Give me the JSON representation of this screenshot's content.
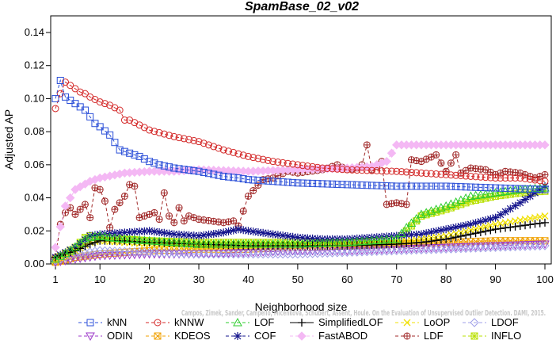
{
  "chart_data": {
    "type": "line",
    "title": "SpamBase_02_v02",
    "xlabel": "Neighborhood size",
    "ylabel": "Adjusted AP",
    "xlim": [
      1,
      100
    ],
    "ylim": [
      0,
      0.14
    ],
    "xticks": [
      1,
      10,
      20,
      30,
      40,
      50,
      60,
      70,
      80,
      90,
      100
    ],
    "yticks": [
      0.0,
      0.02,
      0.04,
      0.06,
      0.08,
      0.1,
      0.12,
      0.14
    ],
    "ytick_labels": [
      "0.00",
      "0.02",
      "0.04",
      "0.06",
      "0.08",
      "0.10",
      "0.12",
      "0.14"
    ],
    "legend_position": "bottom",
    "annotation": "Campos, Zimek, Sander, Campello, Micenkova, Schubert, Assent, Houle. On the Evaluation of Unsupervised Outlier Detection. DAMI, 2015.",
    "series": [
      {
        "name": "kNN",
        "color": "#2b4fd8",
        "marker": "square",
        "line": "dash",
        "points": [
          [
            1,
            0.1
          ],
          [
            2,
            0.111
          ],
          [
            3,
            0.101
          ],
          [
            4,
            0.099
          ],
          [
            5,
            0.097
          ],
          [
            6,
            0.095
          ],
          [
            7,
            0.093
          ],
          [
            8,
            0.089
          ],
          [
            9,
            0.085
          ],
          [
            10,
            0.083
          ],
          [
            12,
            0.078
          ],
          [
            14,
            0.069
          ],
          [
            16,
            0.067
          ],
          [
            18,
            0.065
          ],
          [
            20,
            0.062
          ],
          [
            22,
            0.06
          ],
          [
            25,
            0.058
          ],
          [
            30,
            0.056
          ],
          [
            35,
            0.053
          ],
          [
            38,
            0.052
          ],
          [
            40,
            0.051
          ],
          [
            45,
            0.05
          ],
          [
            50,
            0.049
          ],
          [
            60,
            0.048
          ],
          [
            70,
            0.047
          ],
          [
            80,
            0.047
          ],
          [
            90,
            0.046
          ],
          [
            100,
            0.045
          ]
        ]
      },
      {
        "name": "kNNW",
        "color": "#d42a2a",
        "marker": "circle",
        "line": "dash",
        "points": [
          [
            1,
            0.094
          ],
          [
            2,
            0.103
          ],
          [
            3,
            0.11
          ],
          [
            4,
            0.108
          ],
          [
            5,
            0.106
          ],
          [
            6,
            0.104
          ],
          [
            7,
            0.103
          ],
          [
            8,
            0.101
          ],
          [
            10,
            0.098
          ],
          [
            12,
            0.096
          ],
          [
            14,
            0.093
          ],
          [
            15,
            0.087
          ],
          [
            16,
            0.087
          ],
          [
            18,
            0.084
          ],
          [
            20,
            0.081
          ],
          [
            25,
            0.077
          ],
          [
            30,
            0.074
          ],
          [
            35,
            0.069
          ],
          [
            40,
            0.065
          ],
          [
            45,
            0.062
          ],
          [
            50,
            0.06
          ],
          [
            55,
            0.058
          ],
          [
            60,
            0.057
          ],
          [
            70,
            0.056
          ],
          [
            80,
            0.054
          ],
          [
            90,
            0.052
          ],
          [
            95,
            0.052
          ],
          [
            100,
            0.05
          ]
        ]
      },
      {
        "name": "LOF",
        "color": "#2ecc2e",
        "marker": "triangle-up",
        "line": "dash",
        "points": [
          [
            1,
            0.003
          ],
          [
            4,
            0.008
          ],
          [
            7,
            0.015
          ],
          [
            8,
            0.016
          ],
          [
            10,
            0.017
          ],
          [
            12,
            0.016
          ],
          [
            15,
            0.015
          ],
          [
            20,
            0.014
          ],
          [
            25,
            0.013
          ],
          [
            30,
            0.012
          ],
          [
            40,
            0.012
          ],
          [
            50,
            0.012
          ],
          [
            60,
            0.013
          ],
          [
            70,
            0.015
          ],
          [
            72,
            0.022
          ],
          [
            75,
            0.03
          ],
          [
            80,
            0.035
          ],
          [
            85,
            0.041
          ],
          [
            90,
            0.043
          ],
          [
            95,
            0.045
          ],
          [
            100,
            0.046
          ]
        ]
      },
      {
        "name": "SimplifiedLOF",
        "color": "#000000",
        "marker": "plus",
        "line": "solid",
        "points": [
          [
            1,
            0.004
          ],
          [
            5,
            0.008
          ],
          [
            8,
            0.012
          ],
          [
            10,
            0.014
          ],
          [
            15,
            0.014
          ],
          [
            20,
            0.013
          ],
          [
            30,
            0.012
          ],
          [
            40,
            0.011
          ],
          [
            50,
            0.011
          ],
          [
            60,
            0.011
          ],
          [
            70,
            0.012
          ],
          [
            75,
            0.013
          ],
          [
            80,
            0.015
          ],
          [
            85,
            0.018
          ],
          [
            90,
            0.021
          ],
          [
            95,
            0.023
          ],
          [
            100,
            0.025
          ]
        ]
      },
      {
        "name": "LoOP",
        "color": "#f0e000",
        "marker": "x",
        "line": "dash",
        "points": [
          [
            1,
            0.002
          ],
          [
            5,
            0.008
          ],
          [
            8,
            0.013
          ],
          [
            10,
            0.014
          ],
          [
            15,
            0.013
          ],
          [
            20,
            0.012
          ],
          [
            30,
            0.011
          ],
          [
            40,
            0.011
          ],
          [
            50,
            0.011
          ],
          [
            60,
            0.012
          ],
          [
            70,
            0.013
          ],
          [
            80,
            0.017
          ],
          [
            90,
            0.024
          ],
          [
            100,
            0.029
          ]
        ]
      },
      {
        "name": "LDOF",
        "color": "#a0a0e8",
        "marker": "diamond",
        "line": "dash",
        "points": [
          [
            1,
            0.002
          ],
          [
            5,
            0.006
          ],
          [
            10,
            0.008
          ],
          [
            20,
            0.007
          ],
          [
            30,
            0.006
          ],
          [
            40,
            0.006
          ],
          [
            50,
            0.006
          ],
          [
            60,
            0.007
          ],
          [
            70,
            0.008
          ],
          [
            80,
            0.009
          ],
          [
            90,
            0.01
          ],
          [
            100,
            0.011
          ]
        ]
      },
      {
        "name": "ODIN",
        "color": "#9c39c8",
        "marker": "triangle-down",
        "line": "dash",
        "points": [
          [
            1,
            0.001
          ],
          [
            5,
            0.003
          ],
          [
            10,
            0.005
          ],
          [
            20,
            0.006
          ],
          [
            30,
            0.006
          ],
          [
            40,
            0.007
          ],
          [
            50,
            0.008
          ],
          [
            60,
            0.008
          ],
          [
            70,
            0.009
          ],
          [
            80,
            0.01
          ],
          [
            90,
            0.011
          ],
          [
            100,
            0.012
          ]
        ]
      },
      {
        "name": "KDEOS",
        "color": "#f0a000",
        "marker": "square-x",
        "line": "dash",
        "points": [
          [
            1,
            0.001
          ],
          [
            5,
            0.004
          ],
          [
            10,
            0.006
          ],
          [
            20,
            0.008
          ],
          [
            30,
            0.009
          ],
          [
            40,
            0.009
          ],
          [
            50,
            0.01
          ],
          [
            60,
            0.011
          ],
          [
            70,
            0.012
          ],
          [
            80,
            0.013
          ],
          [
            90,
            0.014
          ],
          [
            100,
            0.014
          ]
        ]
      },
      {
        "name": "COF",
        "color": "#14148c",
        "marker": "asterisk",
        "line": "dash",
        "points": [
          [
            1,
            0.004
          ],
          [
            5,
            0.01
          ],
          [
            8,
            0.017
          ],
          [
            10,
            0.018
          ],
          [
            15,
            0.019
          ],
          [
            20,
            0.02
          ],
          [
            25,
            0.018
          ],
          [
            30,
            0.017
          ],
          [
            35,
            0.019
          ],
          [
            38,
            0.021
          ],
          [
            40,
            0.02
          ],
          [
            45,
            0.018
          ],
          [
            50,
            0.016
          ],
          [
            55,
            0.015
          ],
          [
            60,
            0.015
          ],
          [
            65,
            0.016
          ],
          [
            70,
            0.017
          ],
          [
            75,
            0.018
          ],
          [
            80,
            0.021
          ],
          [
            85,
            0.024
          ],
          [
            90,
            0.028
          ],
          [
            95,
            0.037
          ],
          [
            100,
            0.047
          ]
        ]
      },
      {
        "name": "FastABOD",
        "color": "#f4b8f4",
        "marker": "diamond-filled",
        "line": "dash",
        "points": [
          [
            1,
            0.01
          ],
          [
            3,
            0.035
          ],
          [
            5,
            0.045
          ],
          [
            8,
            0.05
          ],
          [
            10,
            0.052
          ],
          [
            15,
            0.055
          ],
          [
            20,
            0.056
          ],
          [
            25,
            0.056
          ],
          [
            30,
            0.057
          ],
          [
            40,
            0.056
          ],
          [
            50,
            0.057
          ],
          [
            60,
            0.058
          ],
          [
            65,
            0.059
          ],
          [
            68,
            0.062
          ],
          [
            70,
            0.072
          ],
          [
            75,
            0.072
          ],
          [
            80,
            0.072
          ],
          [
            90,
            0.072
          ],
          [
            100,
            0.072
          ]
        ]
      },
      {
        "name": "LDF",
        "color": "#a02828",
        "marker": "circle-plus",
        "line": "dash",
        "points": [
          [
            1,
            0.004
          ],
          [
            2,
            0.024
          ],
          [
            3,
            0.031
          ],
          [
            4,
            0.034
          ],
          [
            5,
            0.03
          ],
          [
            6,
            0.033
          ],
          [
            7,
            0.036
          ],
          [
            8,
            0.028
          ],
          [
            9,
            0.046
          ],
          [
            10,
            0.045
          ],
          [
            11,
            0.038
          ],
          [
            12,
            0.022
          ],
          [
            13,
            0.033
          ],
          [
            15,
            0.041
          ],
          [
            16,
            0.048
          ],
          [
            17,
            0.047
          ],
          [
            18,
            0.028
          ],
          [
            19,
            0.029
          ],
          [
            20,
            0.03
          ],
          [
            21,
            0.031
          ],
          [
            22,
            0.027
          ],
          [
            23,
            0.043
          ],
          [
            24,
            0.029
          ],
          [
            25,
            0.025
          ],
          [
            26,
            0.034
          ],
          [
            27,
            0.026
          ],
          [
            28,
            0.029
          ],
          [
            30,
            0.027
          ],
          [
            35,
            0.025
          ],
          [
            37,
            0.026
          ],
          [
            38,
            0.023
          ],
          [
            40,
            0.041
          ],
          [
            43,
            0.051
          ],
          [
            45,
            0.052
          ],
          [
            48,
            0.056
          ],
          [
            50,
            0.055
          ],
          [
            55,
            0.057
          ],
          [
            58,
            0.06
          ],
          [
            60,
            0.057
          ],
          [
            62,
            0.058
          ],
          [
            63,
            0.06
          ],
          [
            64,
            0.072
          ],
          [
            65,
            0.057
          ],
          [
            66,
            0.059
          ],
          [
            67,
            0.062
          ],
          [
            68,
            0.036
          ],
          [
            70,
            0.037
          ],
          [
            72,
            0.036
          ],
          [
            73,
            0.063
          ],
          [
            75,
            0.062
          ],
          [
            78,
            0.066
          ],
          [
            80,
            0.056
          ],
          [
            82,
            0.066
          ],
          [
            83,
            0.055
          ],
          [
            85,
            0.058
          ],
          [
            88,
            0.057
          ],
          [
            90,
            0.054
          ],
          [
            92,
            0.056
          ],
          [
            95,
            0.055
          ],
          [
            98,
            0.052
          ],
          [
            100,
            0.054
          ]
        ]
      },
      {
        "name": "INFLO",
        "color": "#b8e000",
        "marker": "square-star",
        "line": "dash",
        "points": [
          [
            1,
            0.003
          ],
          [
            5,
            0.01
          ],
          [
            7,
            0.016
          ],
          [
            8,
            0.017
          ],
          [
            10,
            0.016
          ],
          [
            15,
            0.015
          ],
          [
            20,
            0.014
          ],
          [
            30,
            0.013
          ],
          [
            40,
            0.013
          ],
          [
            50,
            0.013
          ],
          [
            60,
            0.013
          ],
          [
            70,
            0.014
          ],
          [
            72,
            0.02
          ],
          [
            75,
            0.029
          ],
          [
            80,
            0.033
          ],
          [
            85,
            0.038
          ],
          [
            90,
            0.041
          ],
          [
            95,
            0.043
          ],
          [
            100,
            0.044
          ]
        ]
      }
    ]
  }
}
